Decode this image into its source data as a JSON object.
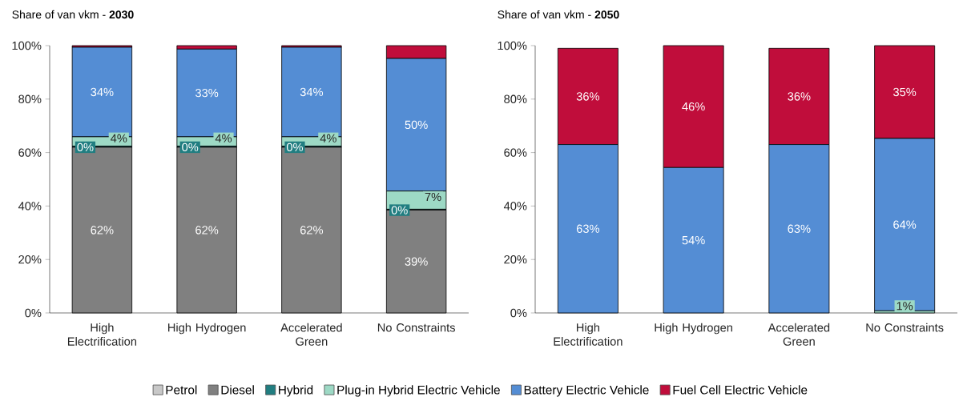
{
  "chart_data": [
    {
      "type": "bar",
      "stacked": true,
      "title": "Share of van vkm - **2030**",
      "categories": [
        "High Electrification",
        "High Hydrogen",
        "Accelerated Green",
        "No Constraints"
      ],
      "ylim": [
        0,
        100
      ],
      "yticks": [
        {
          "value": 0,
          "label": "0%"
        },
        {
          "value": 20,
          "label": "20%"
        },
        {
          "value": 40,
          "label": "40%"
        },
        {
          "value": 60,
          "label": "60%"
        },
        {
          "value": 80,
          "label": "80%"
        },
        {
          "value": 100,
          "label": "100%"
        }
      ],
      "legend": "bottom",
      "series": [
        {
          "name": "Petrol",
          "color": "#c8c8c8",
          "values": [
            0,
            0,
            0,
            0
          ]
        },
        {
          "name": "Diesel",
          "color": "#808080",
          "values": [
            62,
            62,
            62,
            38.5
          ],
          "value_labels": [
            "62%",
            "62%",
            "62%",
            "39%"
          ]
        },
        {
          "name": "Hybrid",
          "color": "#217e81",
          "values": [
            0.4,
            0.4,
            0.4,
            0.3
          ],
          "value_labels": [
            "0%",
            "0%",
            "0%",
            "0%"
          ]
        },
        {
          "name": "Plug-in Hybrid Electric Vehicle",
          "color": "#9dd9c5",
          "values": [
            3.5,
            3.5,
            3.5,
            6.8
          ],
          "value_labels": [
            "4%",
            "4%",
            "4%",
            "7%"
          ]
        },
        {
          "name": "Battery Electric Vehicle",
          "color": "#548dd4",
          "values": [
            33.5,
            32.8,
            33.5,
            49.6
          ],
          "value_labels": [
            "34%",
            "33%",
            "34%",
            "50%"
          ]
        },
        {
          "name": "Fuel Cell Electric Vehicle",
          "color": "#c00d3b",
          "values": [
            0.6,
            1.3,
            0.6,
            4.8
          ]
        }
      ]
    },
    {
      "type": "bar",
      "stacked": true,
      "title": "Share of van vkm - **2050**",
      "categories": [
        "High Electrification",
        "High Hydrogen",
        "Accelerated Green",
        "No Constraints"
      ],
      "ylim": [
        0,
        100
      ],
      "yticks": [
        {
          "value": 0,
          "label": "0%"
        },
        {
          "value": 20,
          "label": "20%"
        },
        {
          "value": 40,
          "label": "40%"
        },
        {
          "value": 60,
          "label": "60%"
        },
        {
          "value": 80,
          "label": "80%"
        },
        {
          "value": 100,
          "label": "100%"
        }
      ],
      "series": [
        {
          "color": "#9dd9c5",
          "values": [
            0,
            0,
            0,
            0.8
          ],
          "value_labels": [
            null,
            null,
            null,
            "1%"
          ]
        },
        {
          "color": "#548dd4",
          "values": [
            63,
            54.4,
            63,
            64.5
          ],
          "value_labels": [
            "63%",
            "54%",
            "63%",
            "64%"
          ]
        },
        {
          "color": "#c00d3b",
          "values": [
            36,
            45.6,
            36,
            34.7
          ],
          "value_labels": [
            "36%",
            "46%",
            "36%",
            "35%"
          ]
        }
      ]
    }
  ]
}
